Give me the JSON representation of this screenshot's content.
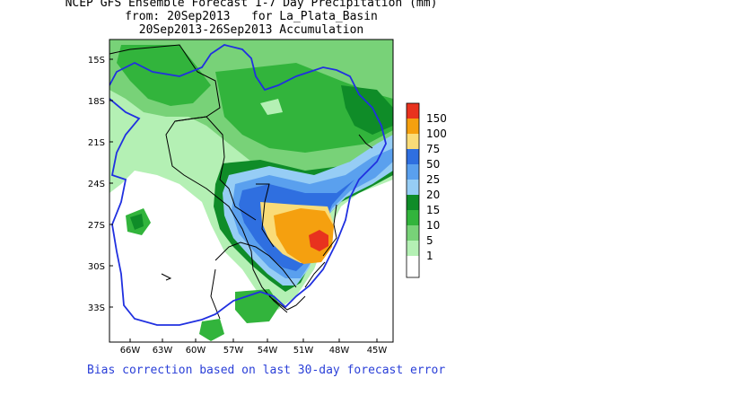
{
  "title": {
    "line1": "NCEP GFS Ensemble Forecast 1-7 Day Precipitation (mm)",
    "line2": "from: 20Sep2013   for La_Plata_Basin",
    "line3": "20Sep2013-26Sep2013 Accumulation"
  },
  "axes": {
    "y_ticks": [
      "15S",
      "18S",
      "21S",
      "24S",
      "27S",
      "30S",
      "33S"
    ],
    "x_ticks": [
      "66W",
      "63W",
      "60W",
      "57W",
      "54W",
      "51W",
      "48W",
      "45W"
    ]
  },
  "legend": {
    "levels": [
      {
        "label": "150",
        "color": "#e8321e"
      },
      {
        "label": "100",
        "color": "#f5a00f"
      },
      {
        "label": "75",
        "color": "#fadc78"
      },
      {
        "label": "50",
        "color": "#2f6fe0"
      },
      {
        "label": "25",
        "color": "#5aa0ee"
      },
      {
        "label": "20",
        "color": "#96cdf5"
      },
      {
        "label": "15",
        "color": "#0f8c28"
      },
      {
        "label": "10",
        "color": "#32b43c"
      },
      {
        "label": "5",
        "color": "#78d278"
      },
      {
        "label": "1",
        "color": "#b4f0b4"
      },
      {
        "label": "",
        "color": "#ffffff"
      }
    ]
  },
  "footer": "Bias correction based on last 30-day forecast error"
}
